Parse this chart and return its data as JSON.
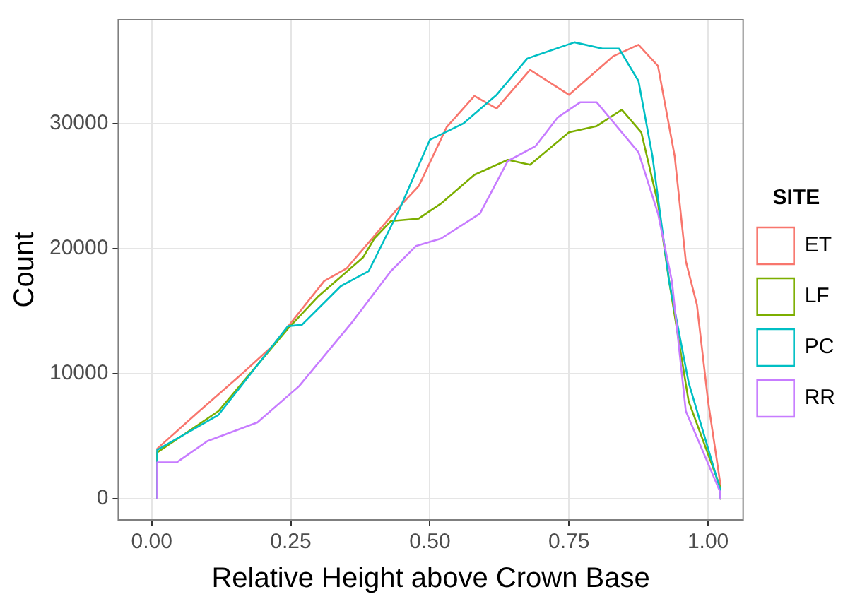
{
  "chart_data": {
    "type": "line",
    "xlabel": "Relative Height above Crown Base",
    "ylabel": "Count",
    "legend_title": "SITE",
    "legend": "right",
    "grid": true,
    "marker": "none",
    "line_style": "solid",
    "xlim": [
      -0.06,
      1.063
    ],
    "ylim": [
      -1700,
      38300
    ],
    "xticks": [
      {
        "value": 0,
        "label": "0.00"
      },
      {
        "value": 0.25,
        "label": "0.25"
      },
      {
        "value": 0.5,
        "label": "0.50"
      },
      {
        "value": 0.75,
        "label": "0.75"
      },
      {
        "value": 1,
        "label": "1.00"
      }
    ],
    "yticks": [
      0,
      10000,
      20000,
      30000
    ],
    "series": [
      {
        "name": "ET",
        "color": "#f8766d",
        "x": [
          0.01,
          0.01,
          0.083,
          0.16,
          0.217,
          0.31,
          0.35,
          0.44,
          0.48,
          0.53,
          0.58,
          0.62,
          0.68,
          0.75,
          0.83,
          0.875,
          0.91,
          0.94,
          0.96,
          0.98,
          1.0,
          1.022,
          1.022
        ],
        "values": [
          0,
          4000,
          6900,
          9900,
          12200,
          17400,
          18400,
          23100,
          25000,
          29700,
          32200,
          31200,
          34300,
          32300,
          35400,
          36300,
          34600,
          27400,
          19000,
          15500,
          7800,
          1200,
          0
        ]
      },
      {
        "name": "LF",
        "color": "#7cae00",
        "x": [
          0.01,
          0.01,
          0.12,
          0.245,
          0.3,
          0.38,
          0.4,
          0.43,
          0.48,
          0.52,
          0.58,
          0.64,
          0.68,
          0.75,
          0.8,
          0.845,
          0.88,
          0.91,
          0.93,
          0.965,
          1.022,
          1.022
        ],
        "values": [
          0,
          3700,
          7000,
          13600,
          16200,
          19300,
          20800,
          22200,
          22400,
          23600,
          25900,
          27100,
          26700,
          29300,
          29800,
          31100,
          29300,
          23600,
          17400,
          7800,
          900,
          0
        ]
      },
      {
        "name": "PC",
        "color": "#00bfc4",
        "x": [
          0.01,
          0.01,
          0.12,
          0.245,
          0.27,
          0.34,
          0.39,
          0.445,
          0.5,
          0.56,
          0.62,
          0.675,
          0.76,
          0.81,
          0.84,
          0.875,
          0.9,
          0.93,
          0.965,
          1.022,
          1.022
        ],
        "values": [
          0,
          3900,
          6700,
          13800,
          13900,
          17000,
          18200,
          23100,
          28700,
          30000,
          32300,
          35200,
          36500,
          36000,
          36000,
          33400,
          27400,
          17400,
          9300,
          700,
          0
        ]
      },
      {
        "name": "RR",
        "color": "#c77cff",
        "x": [
          0.01,
          0.01,
          0.045,
          0.1,
          0.19,
          0.265,
          0.36,
          0.43,
          0.475,
          0.52,
          0.59,
          0.64,
          0.69,
          0.73,
          0.77,
          0.8,
          0.845,
          0.875,
          0.91,
          0.935,
          0.96,
          1.022,
          1.022
        ],
        "values": [
          0,
          2900,
          2900,
          4600,
          6100,
          9000,
          14100,
          18200,
          20200,
          20800,
          22800,
          27000,
          28200,
          30500,
          31700,
          31700,
          29300,
          27700,
          22800,
          17400,
          7000,
          500,
          0
        ]
      }
    ]
  }
}
